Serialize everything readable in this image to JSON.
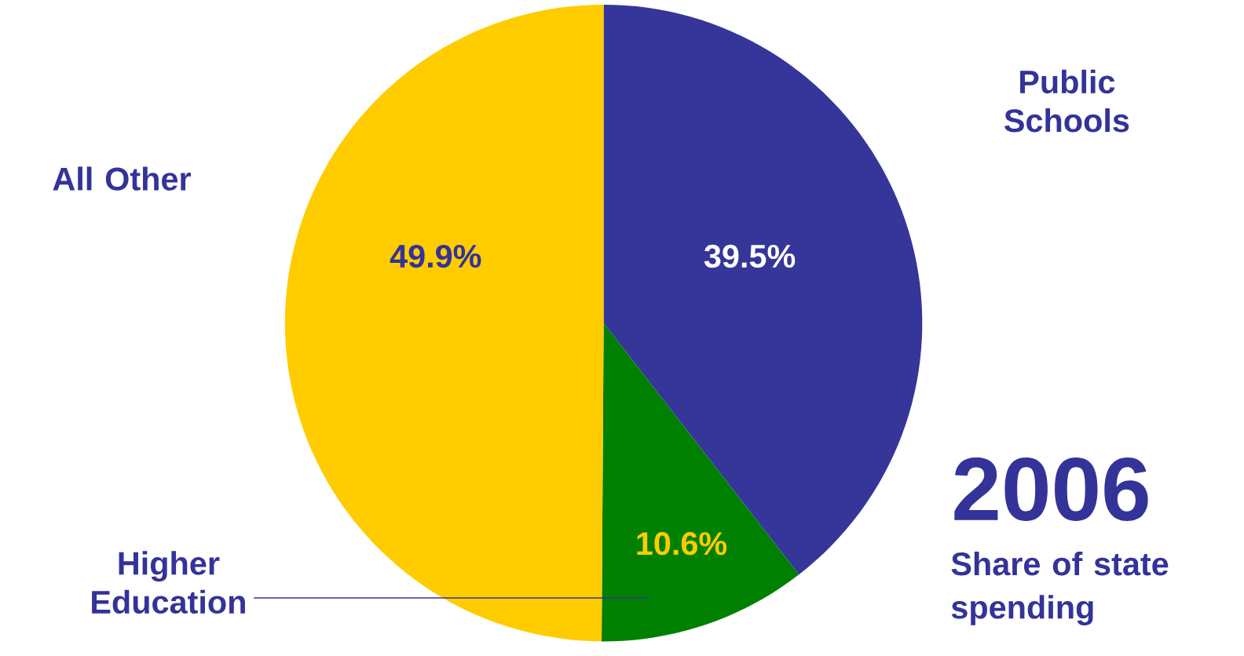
{
  "chart_data": {
    "type": "pie",
    "title": "2006",
    "subtitle": "Share of state spending",
    "categories": [
      "Public Schools",
      "Higher Education",
      "All Other"
    ],
    "values": [
      39.5,
      10.6,
      49.9
    ],
    "colors": [
      "#35359a",
      "#008000",
      "#ffcc00"
    ],
    "value_labels": [
      "39.5%",
      "10.6%",
      "49.9%"
    ]
  }
}
